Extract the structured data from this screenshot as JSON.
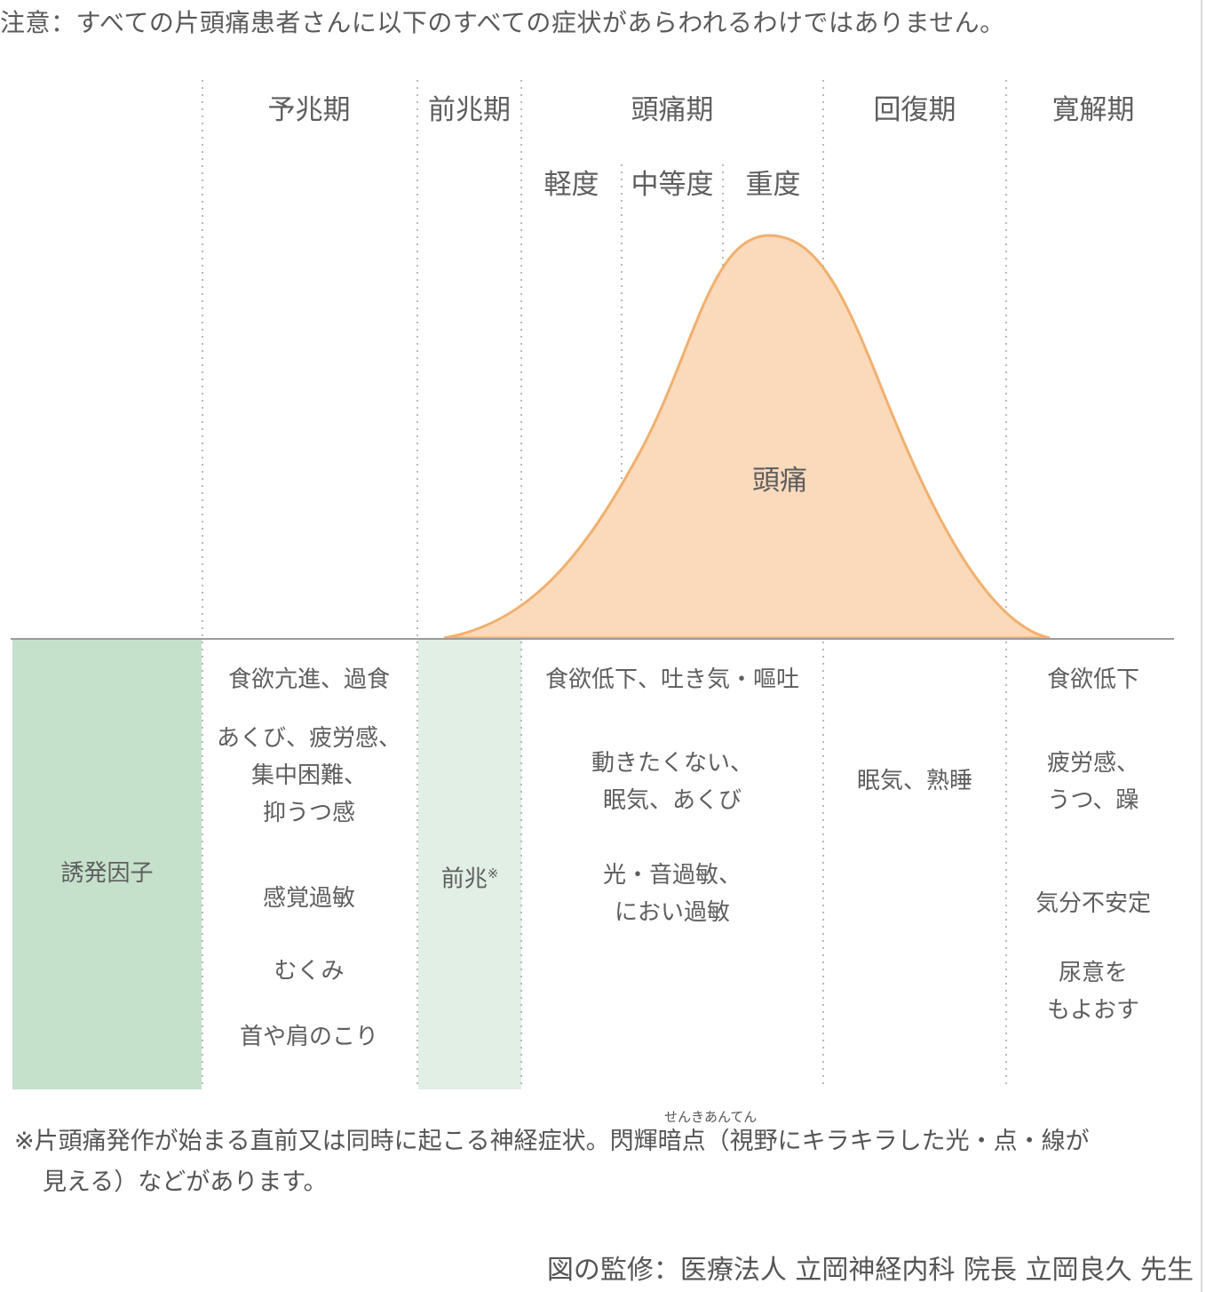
{
  "note": "注意：すべての片頭痛患者さんに以下のすべての症状があらわれるわけではありません。",
  "phases": {
    "prodrome": "予兆期",
    "aura": "前兆期",
    "headache": "頭痛期",
    "recovery": "回復期",
    "remission": "寛解期"
  },
  "severity": {
    "mild": "軽度",
    "moderate": "中等度",
    "severe": "重度"
  },
  "curve_label": "頭痛",
  "colors": {
    "trigger_fill": "#c5e0cb",
    "aura_fill": "#e1efe4",
    "curve_fill": "#fbd9bb",
    "curve_stroke": "#f0b06e",
    "baseline": "#9a9a9a",
    "divider": "#b8b8b8"
  },
  "trigger": {
    "label": "誘発因子"
  },
  "aura_cell": {
    "label": "前兆",
    "mark": "※"
  },
  "symptoms": {
    "prodrome": [
      [
        "食欲亢進、過食"
      ],
      [
        "あくび、疲労感、",
        "集中困難、",
        "抑うつ感"
      ],
      [
        "感覚過敏"
      ],
      [
        "むくみ"
      ],
      [
        "首や肩のこり"
      ]
    ],
    "headache": [
      [
        "食欲低下、吐き気・嘔吐"
      ],
      [
        "動きたくない、",
        "眠気、あくび"
      ],
      [
        "光・音過敏、",
        "におい過敏"
      ]
    ],
    "recovery": [
      [
        "眠気、熟睡"
      ]
    ],
    "remission": [
      [
        "食欲低下"
      ],
      [
        "疲労感、",
        "うつ、躁"
      ],
      [
        "気分不安定"
      ],
      [
        "尿意を",
        "もよおす"
      ]
    ]
  },
  "footnote": {
    "line1_before": "※片頭痛発作が始まる直前又は同時に起こる神経症状。",
    "term": "閃輝暗点",
    "ruby": "せんきあんてん",
    "line1_after": "（視野にキラキラした光・点・線が",
    "line2": "見える）などがあります。"
  },
  "credit": "図の監修：医療法人 立岡神経内科 院長 立岡良久 先生"
}
